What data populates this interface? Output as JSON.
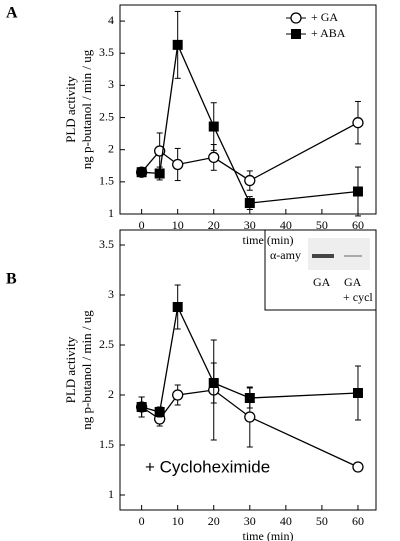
{
  "chart_data": [
    {
      "type": "line",
      "panel": "A",
      "x_label": "time (min)",
      "y_label": [
        "PLD activity",
        "ng p-butanol / min / ug"
      ],
      "x": [
        0,
        5,
        10,
        20,
        30,
        60
      ],
      "xlim": [
        -6,
        65
      ],
      "xticks": [
        0,
        10,
        20,
        30,
        40,
        50,
        60
      ],
      "ylim": [
        1,
        4.25
      ],
      "yticks": [
        1,
        1.5,
        2,
        2.5,
        3,
        3.5,
        4
      ],
      "legend": "top-right",
      "series": [
        {
          "name": "+ GA",
          "marker": "circle",
          "color": "#000000",
          "values": [
            1.65,
            1.98,
            1.77,
            1.88,
            1.52,
            2.42
          ],
          "errors": [
            0.05,
            0.28,
            0.25,
            0.2,
            0.15,
            0.33
          ]
        },
        {
          "name": "+ ABA",
          "marker": "square",
          "color": "#000000",
          "values": [
            1.65,
            1.63,
            3.63,
            2.36,
            1.17,
            1.35
          ],
          "errors": [
            0.05,
            0.1,
            0.52,
            0.37,
            0.1,
            0.38
          ]
        }
      ]
    },
    {
      "type": "line",
      "panel": "B",
      "x_label": "time (min)",
      "y_label": [
        "PLD activity",
        "ng p-butanol / min / ug"
      ],
      "annotation": "+ Cycloheximide",
      "inset": {
        "label": "α-amy",
        "lanes": [
          "GA",
          "GA"
        ],
        "lane_note": "+ cycl"
      },
      "x": [
        0,
        5,
        10,
        20,
        30,
        60
      ],
      "xlim": [
        -6,
        65
      ],
      "xticks": [
        0,
        10,
        20,
        30,
        40,
        50,
        60
      ],
      "ylim": [
        0.85,
        3.65
      ],
      "yticks": [
        1,
        1.5,
        2,
        2.5,
        3,
        3.5
      ],
      "series": [
        {
          "marker": "circle",
          "color": "#000000",
          "values": [
            1.88,
            1.76,
            2.0,
            2.05,
            1.78,
            1.28
          ],
          "errors": [
            0.1,
            0.07,
            0.1,
            0.5,
            0.3,
            0.03
          ]
        },
        {
          "marker": "square",
          "color": "#000000",
          "values": [
            1.88,
            1.83,
            2.88,
            2.12,
            1.97,
            2.02
          ],
          "errors": [
            0.1,
            0.05,
            0.22,
            0.2,
            0.1,
            0.27
          ]
        }
      ]
    }
  ]
}
